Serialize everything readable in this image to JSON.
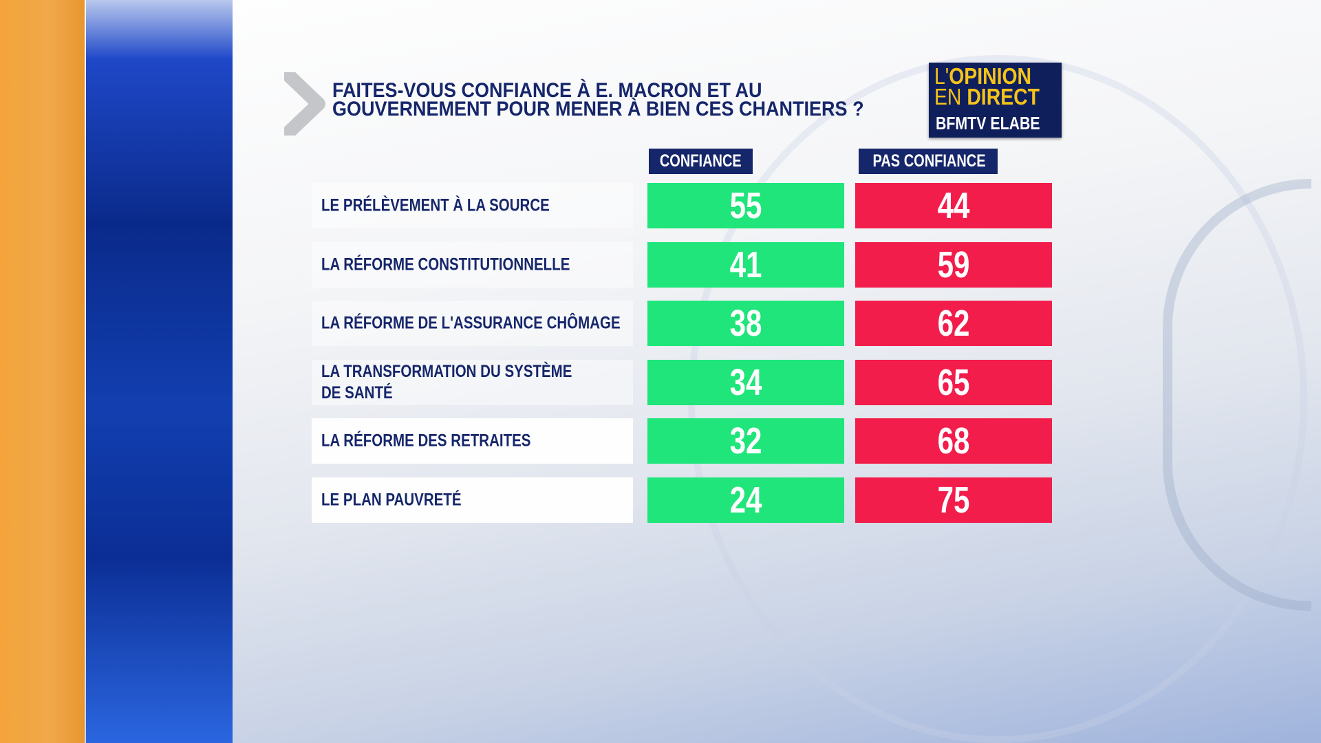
{
  "title_lines": [
    "FAITES-VOUS CONFIANCE À E. MACRON ET AU",
    "GOUVERNEMENT POUR MENER À BIEN CES CHANTIERS ?"
  ],
  "logo": {
    "line1_a": "L'",
    "line1_b": "OPINION",
    "line2_a": "EN ",
    "line2_b": "DIRECT",
    "line3": "BFMTV ELABE"
  },
  "colors": {
    "confiance": "#1fe57a",
    "pas_confiance": "#f21d4b",
    "navy": "#16266a"
  },
  "chart_data": {
    "type": "table",
    "columns": [
      "CONFIANCE",
      "PAS CONFIANCE"
    ],
    "categories": [
      "LE PRÉLÈVEMENT À LA SOURCE",
      "LA RÉFORME CONSTITUTIONNELLE",
      "LA RÉFORME DE L'ASSURANCE CHÔMAGE",
      "LA TRANSFORMATION DU SYSTÈME\nDE SANTÉ",
      "LA RÉFORME DES RETRAITES",
      "LE PLAN PAUVRETÉ"
    ],
    "series": [
      {
        "name": "CONFIANCE",
        "values": [
          55,
          41,
          38,
          34,
          32,
          24
        ]
      },
      {
        "name": "PAS CONFIANCE",
        "values": [
          44,
          59,
          62,
          65,
          68,
          75
        ]
      }
    ]
  }
}
